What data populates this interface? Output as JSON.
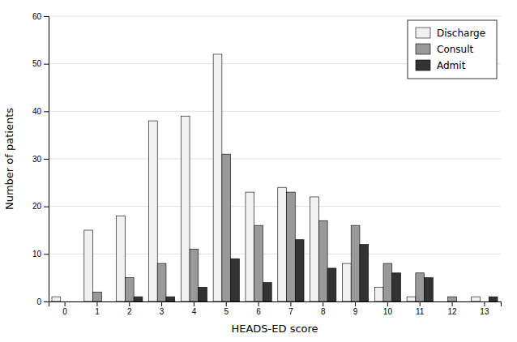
{
  "chart_data": {
    "type": "bar",
    "categories": [
      "0",
      "1",
      "2",
      "3",
      "4",
      "5",
      "6",
      "7",
      "8",
      "9",
      "10",
      "11",
      "12",
      "13"
    ],
    "series": [
      {
        "name": "Discharge",
        "color": "#f0f0f0",
        "values": [
          1,
          15,
          18,
          38,
          39,
          52,
          23,
          24,
          22,
          8,
          3,
          1,
          0,
          1
        ]
      },
      {
        "name": "Consult",
        "color": "#999999",
        "values": [
          0,
          2,
          5,
          8,
          11,
          31,
          16,
          23,
          17,
          16,
          8,
          6,
          1,
          0
        ]
      },
      {
        "name": "Admit",
        "color": "#333333",
        "values": [
          0,
          0,
          1,
          1,
          3,
          9,
          4,
          13,
          7,
          12,
          6,
          5,
          0,
          1
        ]
      }
    ],
    "xlabel": "HEADS-ED score",
    "ylabel": "Number of patients",
    "ylim": [
      0,
      60
    ],
    "yticks": [
      0,
      10,
      20,
      30,
      40,
      50,
      60
    ],
    "grid": true,
    "legend": "top-right"
  }
}
